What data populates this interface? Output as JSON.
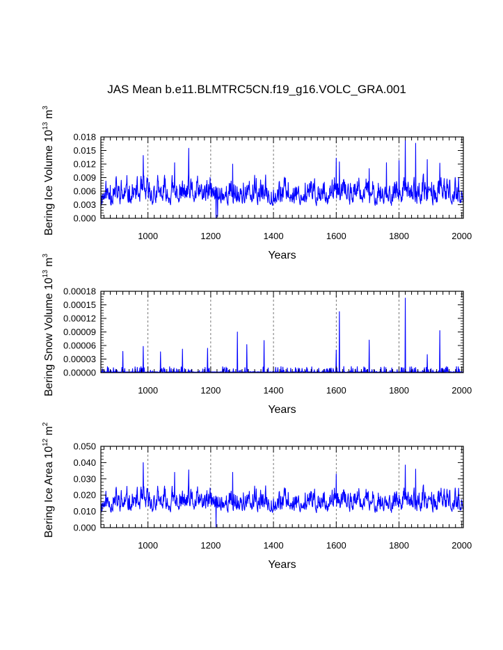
{
  "title": "JAS Mean b.e11.BLMTRC5CN.f19_g16.VOLC_GRA.001",
  "colors": {
    "series": "#0000ff",
    "axis": "#000000",
    "grid": "#555555"
  },
  "chart_data": [
    {
      "type": "line",
      "name": "ice-volume",
      "ylabel_text": "Bering Ice Volume 10",
      "ylabel_exp": "13",
      "ylabel_unit": " m",
      "ylabel_unit_exp": "3",
      "xlabel": "Years",
      "xlim": [
        850,
        2005
      ],
      "ylim": [
        0,
        0.018
      ],
      "x_ticks": [
        1000,
        1200,
        1400,
        1600,
        1800,
        2000
      ],
      "y_ticks": [
        "0.000",
        "0.003",
        "0.006",
        "0.009",
        "0.012",
        "0.015",
        "0.018"
      ],
      "grid_x": [
        1000,
        1200,
        1400,
        1600,
        1800
      ],
      "series": {
        "name": "Bering Ice Volume",
        "seed": 11,
        "base": 0.0025,
        "amp": 0.0035,
        "peaks": [
          [
            880,
            0.0073
          ],
          [
            985,
            0.0139
          ],
          [
            1085,
            0.0123
          ],
          [
            1130,
            0.0155
          ],
          [
            1270,
            0.012
          ],
          [
            1600,
            0.0133
          ],
          [
            1610,
            0.0125
          ],
          [
            1705,
            0.011
          ],
          [
            1760,
            0.0123
          ],
          [
            1800,
            0.0128
          ],
          [
            1820,
            0.0173
          ],
          [
            1853,
            0.0166
          ],
          [
            1890,
            0.013
          ],
          [
            1930,
            0.0122
          ],
          [
            1217,
            0.0001
          ],
          [
            1222,
            0.0004
          ]
        ],
        "min": 0.0,
        "max": 0.0175
      }
    },
    {
      "type": "line",
      "name": "snow-volume",
      "ylabel_text": "Bering Snow Volume 10",
      "ylabel_exp": "13",
      "ylabel_unit": " m",
      "ylabel_unit_exp": "3",
      "xlabel": "Years",
      "xlim": [
        850,
        2005
      ],
      "ylim": [
        0,
        0.00018
      ],
      "x_ticks": [
        1000,
        1200,
        1400,
        1600,
        1800,
        2000
      ],
      "y_ticks": [
        "0.00000",
        "0.00003",
        "0.00006",
        "0.00009",
        "0.00012",
        "0.00015",
        "0.00018"
      ],
      "grid_x": [
        1000,
        1200,
        1400,
        1600,
        1800
      ],
      "series": {
        "name": "Bering Snow Volume",
        "seed": 29,
        "base": 5e-07,
        "amp": 6e-06,
        "spiky": true,
        "peaks": [
          [
            920,
            4.7e-05
          ],
          [
            985,
            5.8e-05
          ],
          [
            1040,
            4.6e-05
          ],
          [
            1110,
            5.2e-05
          ],
          [
            1190,
            5.4e-05
          ],
          [
            1285,
            9e-05
          ],
          [
            1315,
            6.2e-05
          ],
          [
            1370,
            7.1e-05
          ],
          [
            1600,
            5e-05
          ],
          [
            1610,
            0.000135
          ],
          [
            1705,
            7.2e-05
          ],
          [
            1820,
            0.000165
          ],
          [
            1890,
            4e-05
          ],
          [
            1930,
            9.3e-05
          ]
        ],
        "min": 0.0,
        "max": 0.000166
      }
    },
    {
      "type": "line",
      "name": "ice-area",
      "ylabel_text": "Bering Ice Area 10",
      "ylabel_exp": "12",
      "ylabel_unit": " m",
      "ylabel_unit_exp": "2",
      "xlabel": "Years",
      "xlim": [
        850,
        2005
      ],
      "ylim": [
        0,
        0.05
      ],
      "x_ticks": [
        1000,
        1200,
        1400,
        1600,
        1800,
        2000
      ],
      "y_ticks": [
        "0.000",
        "0.010",
        "0.020",
        "0.030",
        "0.040",
        "0.050"
      ],
      "grid_x": [
        1000,
        1200,
        1400,
        1600,
        1800
      ],
      "series": {
        "name": "Bering Ice Area",
        "seed": 11,
        "base": 0.0085,
        "amp": 0.0085,
        "peaks": [
          [
            985,
            0.04
          ],
          [
            1085,
            0.034
          ],
          [
            1130,
            0.0355
          ],
          [
            1270,
            0.034
          ],
          [
            1600,
            0.033
          ],
          [
            1820,
            0.0385
          ],
          [
            1853,
            0.036
          ],
          [
            1217,
            0.0005
          ]
        ],
        "min": 0.0,
        "max": 0.0405
      }
    }
  ]
}
